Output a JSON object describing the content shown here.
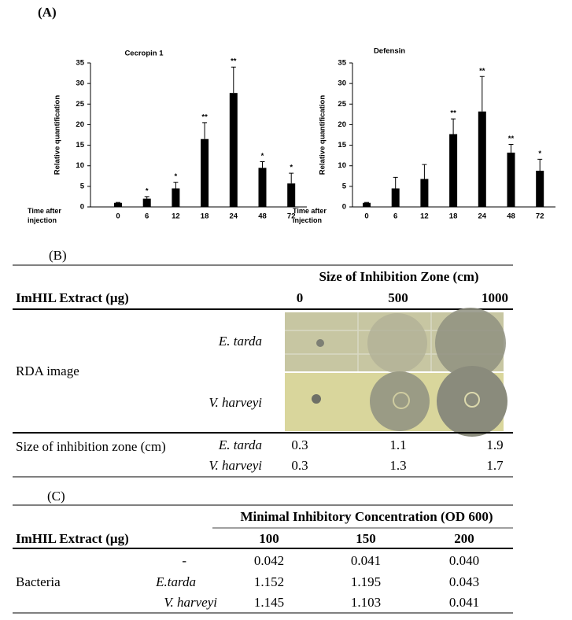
{
  "panel_a": {
    "label": "(A)"
  },
  "chart_data": [
    {
      "type": "bar",
      "title": "Cecropin 1",
      "y_label": "Relative quantification",
      "x_label": "Time after injection",
      "categories": [
        "0",
        "6",
        "12",
        "18",
        "24",
        "48",
        "72"
      ],
      "values": [
        1,
        2,
        4.5,
        16.5,
        27.7,
        9.5,
        5.7
      ],
      "errors": [
        0.1,
        0.5,
        1.5,
        4,
        6.3,
        1.5,
        2.5
      ],
      "annotations": [
        null,
        "*",
        "*",
        "**",
        "**",
        "*",
        "*"
      ],
      "color": "#000000",
      "ylim": [
        0,
        35
      ],
      "yticks": [
        0,
        5,
        10,
        15,
        20,
        25,
        30,
        35
      ]
    },
    {
      "type": "bar",
      "title": "Defensin",
      "y_label": "Relative quantification",
      "x_label": "Time after injection",
      "categories": [
        "0",
        "6",
        "12",
        "18",
        "24",
        "48",
        "72"
      ],
      "values": [
        1,
        4.5,
        6.8,
        17.7,
        23.2,
        13.2,
        8.8
      ],
      "errors": [
        0.1,
        2.7,
        3.5,
        3.7,
        8.5,
        2,
        2.8
      ],
      "annotations": [
        null,
        null,
        null,
        "**",
        "**",
        "**",
        "*"
      ],
      "color": "#000000",
      "ylim": [
        0,
        35
      ],
      "yticks": [
        0,
        5,
        10,
        15,
        20,
        25,
        30,
        35
      ]
    }
  ],
  "panel_b": {
    "label": "(B)",
    "group_header": "Size of Inhibition Zone (cm)",
    "row_header": "ImHIL Extract (μg)",
    "columns": [
      "0",
      "500",
      "1000"
    ],
    "image_row": {
      "label": "RDA image",
      "strains": [
        "E. tarda",
        "V. harveyi"
      ]
    },
    "size_label": "Size of inhibition zone (cm)",
    "rows": [
      {
        "strain": "E. tarda",
        "values": [
          "0.3",
          "1.1",
          "1.9"
        ]
      },
      {
        "strain": "V. harveyi",
        "values": [
          "0.3",
          "1.3",
          "1.7"
        ]
      }
    ]
  },
  "panel_c": {
    "label": "(C)",
    "group_header": "Minimal Inhibitory Concentration (OD 600)",
    "row_header": "ImHIL Extract (μg)",
    "columns": [
      "100",
      "150",
      "200"
    ],
    "group_label": "Bacteria",
    "rows": [
      {
        "strain": "-",
        "values": [
          "0.042",
          "0.041",
          "0.040"
        ]
      },
      {
        "strain": "E.tarda",
        "values": [
          "1.152",
          "1.195",
          "0.043"
        ]
      },
      {
        "strain": "V. harveyi",
        "values": [
          "1.145",
          "1.103",
          "0.041"
        ]
      }
    ]
  }
}
